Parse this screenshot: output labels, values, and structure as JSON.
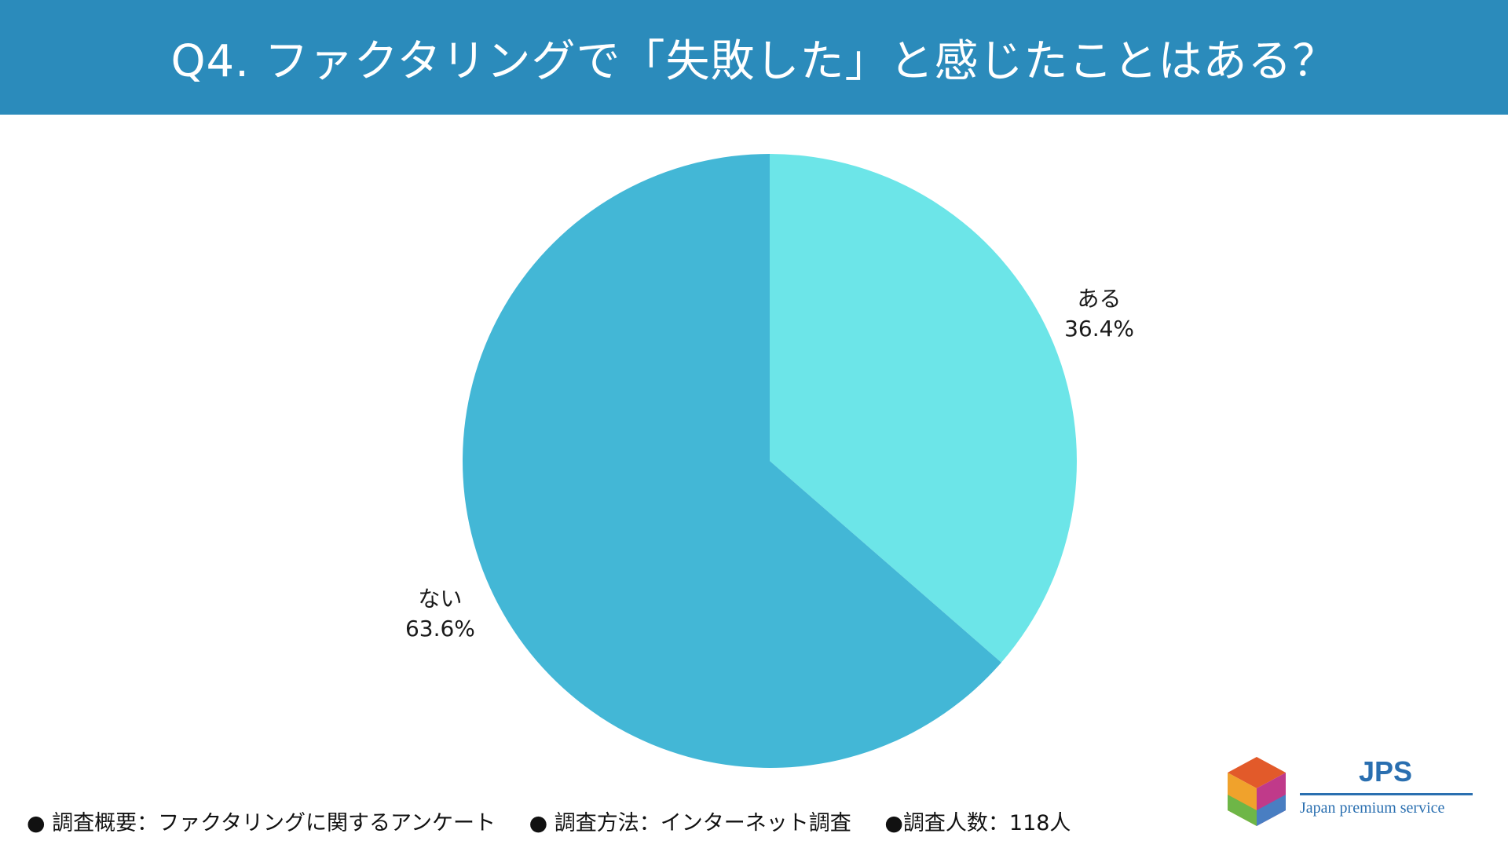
{
  "header": {
    "title": "Q4. ファクタリングで「失敗した」と感じたことはある？"
  },
  "colors": {
    "header_bg": "#2b8bbb",
    "slice_aru": "#6ce5e8",
    "slice_nai": "#43b7d6"
  },
  "chart_data": {
    "type": "pie",
    "title": "",
    "slices": [
      {
        "label": "ある",
        "value": 36.4,
        "value_label": "36.4%",
        "color": "#6ce5e8"
      },
      {
        "label": "ない",
        "value": 63.6,
        "value_label": "63.6%",
        "color": "#43b7d6"
      }
    ],
    "start_angle": "12 o'clock",
    "direction": "clockwise"
  },
  "footer": {
    "item1": "● 調査概要：ファクタリングに関するアンケート",
    "item2": "● 調査方法：インターネット調査",
    "item3": "●調査人数：118人"
  },
  "logo": {
    "name": "JPS",
    "subtitle": "Japan premium service"
  }
}
